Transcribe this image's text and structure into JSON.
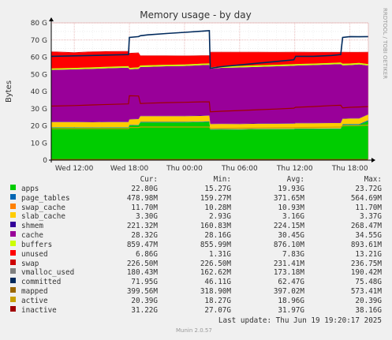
{
  "chart_data": {
    "type": "area",
    "title": "Memory usage - by day",
    "ylabel": "Bytes",
    "side_label": "RRDTOOL / TOBI OETIKER",
    "ylim": [
      0,
      80
    ],
    "yticks": [
      "0",
      "10 G",
      "20 G",
      "30 G",
      "40 G",
      "50 G",
      "60 G",
      "70 G",
      "80 G"
    ],
    "xticks": [
      {
        "label": "Wed 12:00",
        "hour": 12
      },
      {
        "label": "Wed 18:00",
        "hour": 18
      },
      {
        "label": "Thu 00:00",
        "hour": 24
      },
      {
        "label": "Thu 06:00",
        "hour": 30
      },
      {
        "label": "Thu 12:00",
        "hour": 36
      },
      {
        "label": "Thu 18:00",
        "hour": 42
      }
    ],
    "x_range_hours": [
      9.5,
      44
    ],
    "x": [
      9.5,
      12,
      14,
      16,
      17.9,
      18,
      19,
      19.2,
      20,
      22,
      24,
      26,
      26.7,
      26.8,
      28,
      30,
      32,
      34,
      35.9,
      36.1,
      38,
      40,
      41,
      41.2,
      42,
      43,
      44
    ],
    "series": [
      {
        "name": "apps",
        "color": "#00CC00",
        "values": [
          19.0,
          19.0,
          18.9,
          19.0,
          19.0,
          20.2,
          20.3,
          22.0,
          22.0,
          22.0,
          22.0,
          22.2,
          22.3,
          17.8,
          17.9,
          17.8,
          18.0,
          18.0,
          18.1,
          18.2,
          18.2,
          18.3,
          18.3,
          20.5,
          20.6,
          20.6,
          22.8
        ]
      },
      {
        "name": "page_tables",
        "color": "#0066B3",
        "values": [
          0.2,
          0.2,
          0.2,
          0.2,
          0.2,
          0.3,
          0.3,
          0.3,
          0.3,
          0.3,
          0.3,
          0.3,
          0.3,
          0.2,
          0.2,
          0.2,
          0.2,
          0.2,
          0.2,
          0.2,
          0.2,
          0.2,
          0.2,
          0.4,
          0.4,
          0.4,
          0.5
        ]
      },
      {
        "name": "swap_cache",
        "color": "#FF8000",
        "values": [
          0.01,
          0.01,
          0.01,
          0.01,
          0.01,
          0.01,
          0.01,
          0.01,
          0.01,
          0.01,
          0.01,
          0.01,
          0.01,
          0.01,
          0.01,
          0.01,
          0.01,
          0.01,
          0.01,
          0.01,
          0.01,
          0.01,
          0.01,
          0.01,
          0.01,
          0.01,
          0.01
        ]
      },
      {
        "name": "slab_cache",
        "color": "#FFCC00",
        "values": [
          3.0,
          3.0,
          3.0,
          3.0,
          3.0,
          3.2,
          3.3,
          3.3,
          3.3,
          3.3,
          3.3,
          3.3,
          3.3,
          3.0,
          3.0,
          3.0,
          3.0,
          3.0,
          3.0,
          3.1,
          3.1,
          3.1,
          3.1,
          3.2,
          3.2,
          3.2,
          3.3
        ]
      },
      {
        "name": "shmem",
        "color": "#330099",
        "values": [
          0.2,
          0.2,
          0.2,
          0.2,
          0.2,
          0.2,
          0.2,
          0.2,
          0.2,
          0.2,
          0.2,
          0.2,
          0.2,
          0.2,
          0.2,
          0.2,
          0.2,
          0.2,
          0.2,
          0.2,
          0.2,
          0.2,
          0.2,
          0.2,
          0.2,
          0.2,
          0.2
        ]
      },
      {
        "name": "cache",
        "color": "#990099",
        "values": [
          30.2,
          30.5,
          30.9,
          31.2,
          31.5,
          29.0,
          29.1,
          28.5,
          28.6,
          28.9,
          29.1,
          29.4,
          29.4,
          32.0,
          32.5,
          32.8,
          33.0,
          33.3,
          33.5,
          33.4,
          33.7,
          34.0,
          34.2,
          31.0,
          31.0,
          31.4,
          28.3
        ]
      },
      {
        "name": "buffers",
        "color": "#CCFF00",
        "values": [
          0.86,
          0.86,
          0.86,
          0.86,
          0.86,
          0.86,
          0.86,
          0.86,
          0.87,
          0.87,
          0.87,
          0.87,
          0.87,
          0.87,
          0.87,
          0.87,
          0.88,
          0.88,
          0.88,
          0.88,
          0.88,
          0.89,
          0.89,
          0.89,
          0.89,
          0.89,
          0.86
        ]
      },
      {
        "name": "unused",
        "color": "#FF0000",
        "values": [
          9.6,
          8.9,
          9.0,
          8.8,
          8.6,
          8.5,
          8.4,
          5.6,
          5.5,
          5.2,
          4.9,
          4.6,
          4.5,
          8.8,
          8.2,
          8.0,
          7.6,
          7.2,
          7.0,
          6.9,
          6.5,
          6.1,
          5.9,
          6.7,
          6.5,
          6.1,
          6.9
        ]
      },
      {
        "name": "swap",
        "color": "#CC0000",
        "values": [
          0.23,
          0.23,
          0.23,
          0.23,
          0.23,
          0.23,
          0.23,
          0.23,
          0.23,
          0.23,
          0.23,
          0.23,
          0.23,
          0.23,
          0.23,
          0.23,
          0.23,
          0.23,
          0.23,
          0.23,
          0.23,
          0.23,
          0.23,
          0.23,
          0.23,
          0.23,
          0.23
        ]
      }
    ],
    "lines": [
      {
        "name": "vmalloc_used",
        "color": "#808080",
        "values": [
          0.18,
          0.18,
          0.18,
          0.18,
          0.18,
          0.18,
          0.18,
          0.18,
          0.18,
          0.18,
          0.18,
          0.18,
          0.18,
          0.18,
          0.18,
          0.18,
          0.18,
          0.18,
          0.18,
          0.18,
          0.18,
          0.18,
          0.18,
          0.18,
          0.18,
          0.18,
          0.18
        ]
      },
      {
        "name": "committed",
        "color": "#00295C",
        "values": [
          60.5,
          60.8,
          61.0,
          61.3,
          61.5,
          71.5,
          72.0,
          72.5,
          73.0,
          73.8,
          74.5,
          75.2,
          75.5,
          53.5,
          54.5,
          55.5,
          56.5,
          57.5,
          58.5,
          60.5,
          60.5,
          61.0,
          61.5,
          71.5,
          72.0,
          71.9,
          72.0
        ]
      },
      {
        "name": "mapped",
        "color": "#996600",
        "values": [
          0.4,
          0.4,
          0.4,
          0.4,
          0.4,
          0.4,
          0.4,
          0.4,
          0.4,
          0.4,
          0.4,
          0.4,
          0.4,
          0.4,
          0.4,
          0.4,
          0.4,
          0.4,
          0.4,
          0.4,
          0.4,
          0.4,
          0.4,
          0.4,
          0.4,
          0.4,
          0.4
        ]
      },
      {
        "name": "active",
        "color": "#C8A000",
        "values": [
          18.3,
          18.4,
          18.4,
          18.4,
          18.4,
          19.0,
          19.0,
          19.3,
          19.3,
          19.3,
          19.3,
          19.3,
          19.3,
          18.4,
          18.5,
          18.6,
          18.7,
          18.8,
          18.9,
          19.0,
          19.1,
          19.2,
          19.3,
          20.0,
          20.1,
          20.2,
          20.4
        ]
      },
      {
        "name": "inactive",
        "color": "#A00000",
        "values": [
          31.5,
          31.8,
          32.2,
          32.5,
          32.8,
          37.5,
          37.4,
          33.0,
          33.2,
          33.5,
          33.7,
          34.0,
          34.0,
          28.2,
          28.5,
          28.9,
          29.4,
          29.8,
          30.3,
          30.8,
          31.2,
          31.8,
          32.0,
          30.5,
          30.8,
          31.0,
          31.2
        ]
      }
    ],
    "legend": {
      "headers": {
        "cur": "Cur:",
        "min": "Min:",
        "avg": "Avg:",
        "max": "Max:"
      },
      "rows": [
        {
          "name": "apps",
          "color": "#00CC00",
          "cur": "22.80G",
          "min": "15.27G",
          "avg": "19.93G",
          "max": "23.72G"
        },
        {
          "name": "page_tables",
          "color": "#0066B3",
          "cur": "478.98M",
          "min": "159.27M",
          "avg": "371.65M",
          "max": "564.69M"
        },
        {
          "name": "swap_cache",
          "color": "#FF8000",
          "cur": "11.70M",
          "min": "10.28M",
          "avg": "10.93M",
          "max": "11.70M"
        },
        {
          "name": "slab_cache",
          "color": "#FFCC00",
          "cur": "3.30G",
          "min": "2.93G",
          "avg": "3.16G",
          "max": "3.37G"
        },
        {
          "name": "shmem",
          "color": "#330099",
          "cur": "221.32M",
          "min": "160.83M",
          "avg": "224.15M",
          "max": "268.47M"
        },
        {
          "name": "cache",
          "color": "#990099",
          "cur": "28.32G",
          "min": "28.16G",
          "avg": "30.45G",
          "max": "34.55G"
        },
        {
          "name": "buffers",
          "color": "#CCFF00",
          "cur": "859.47M",
          "min": "855.99M",
          "avg": "876.10M",
          "max": "893.61M"
        },
        {
          "name": "unused",
          "color": "#FF0000",
          "cur": "6.86G",
          "min": "1.31G",
          "avg": "7.83G",
          "max": "13.21G"
        },
        {
          "name": "swap",
          "color": "#CC0000",
          "cur": "226.50M",
          "min": "226.50M",
          "avg": "231.41M",
          "max": "236.75M"
        },
        {
          "name": "vmalloc_used",
          "color": "#808080",
          "cur": "180.43M",
          "min": "162.62M",
          "avg": "173.18M",
          "max": "190.42M"
        },
        {
          "name": "committed",
          "color": "#00295C",
          "cur": "71.95G",
          "min": "46.11G",
          "avg": "62.47G",
          "max": "75.48G"
        },
        {
          "name": "mapped",
          "color": "#996600",
          "cur": "399.56M",
          "min": "318.90M",
          "avg": "397.02M",
          "max": "573.41M"
        },
        {
          "name": "active",
          "color": "#C8A000",
          "cur": "20.39G",
          "min": "18.27G",
          "avg": "18.96G",
          "max": "20.39G"
        },
        {
          "name": "inactive",
          "color": "#A00000",
          "cur": "31.22G",
          "min": "27.07G",
          "avg": "31.97G",
          "max": "38.16G"
        }
      ]
    },
    "last_update": "Last update: Thu Jun 19 19:20:17 2025",
    "footer": "Munin 2.0.57"
  }
}
